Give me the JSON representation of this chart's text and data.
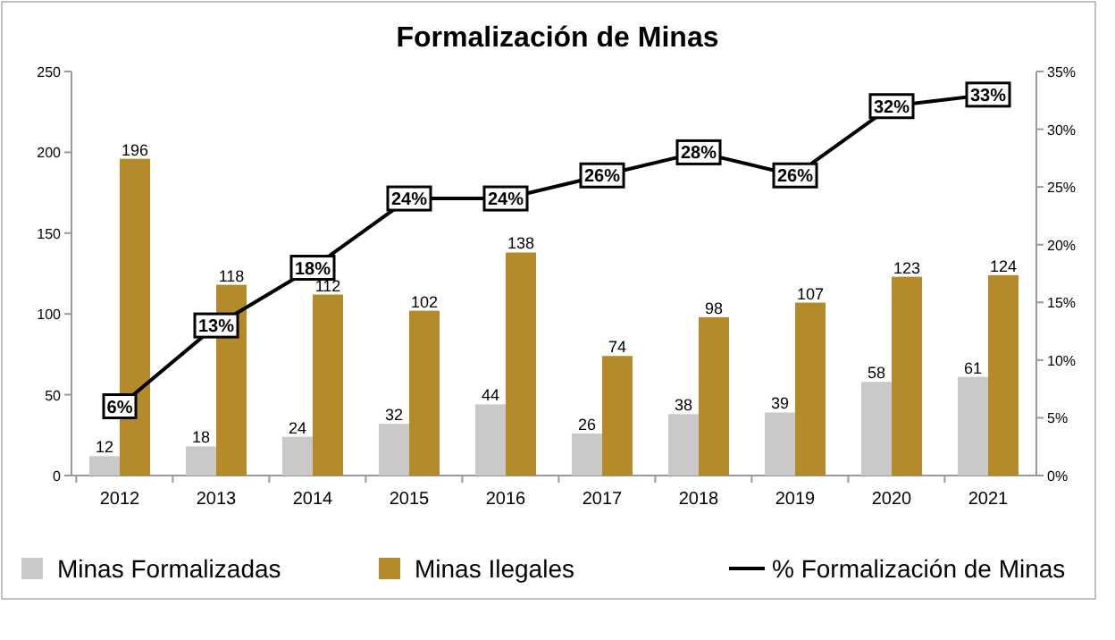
{
  "chart_data": {
    "type": "bar",
    "title": "Formalización de Minas",
    "categories": [
      "2012",
      "2013",
      "2014",
      "2015",
      "2016",
      "2017",
      "2018",
      "2019",
      "2020",
      "2021"
    ],
    "series": [
      {
        "name": "Minas Formalizadas",
        "color": "#c9c9c9",
        "values": [
          12,
          18,
          24,
          32,
          44,
          26,
          38,
          39,
          58,
          61
        ],
        "value_labels": [
          "12",
          "18",
          "24",
          "32",
          "44",
          "26",
          "38",
          "39",
          "58",
          "61"
        ]
      },
      {
        "name": "Minas Ilegales",
        "color": "#b38b2b",
        "values": [
          196,
          118,
          112,
          102,
          138,
          74,
          98,
          107,
          123,
          124
        ],
        "value_labels": [
          "196",
          "118",
          "112",
          "102",
          "138",
          "74",
          "98",
          "107",
          "123",
          "124"
        ]
      },
      {
        "name": "% Formalización de Minas",
        "type": "line",
        "axis": "y2",
        "color": "#000000",
        "marker": "square",
        "values": [
          6,
          13,
          18,
          24,
          24,
          26,
          28,
          26,
          32,
          33
        ],
        "value_labels": [
          "6%",
          "13%",
          "18%",
          "24%",
          "24%",
          "26%",
          "28%",
          "26%",
          "32%",
          "33%"
        ]
      }
    ],
    "ylim": [
      0,
      250
    ],
    "yticks": [
      0,
      50,
      100,
      150,
      200,
      250
    ],
    "y2lim": [
      0,
      35
    ],
    "y2ticks": [
      {
        "value": 0,
        "label": "0%"
      },
      {
        "value": 5,
        "label": "5%"
      },
      {
        "value": 10,
        "label": "10%"
      },
      {
        "value": 15,
        "label": "15%"
      },
      {
        "value": 20,
        "label": "20%"
      },
      {
        "value": 25,
        "label": "25%"
      },
      {
        "value": 30,
        "label": "30%"
      },
      {
        "value": 35,
        "label": "35%"
      }
    ],
    "grid": false,
    "legend": "bottom"
  }
}
